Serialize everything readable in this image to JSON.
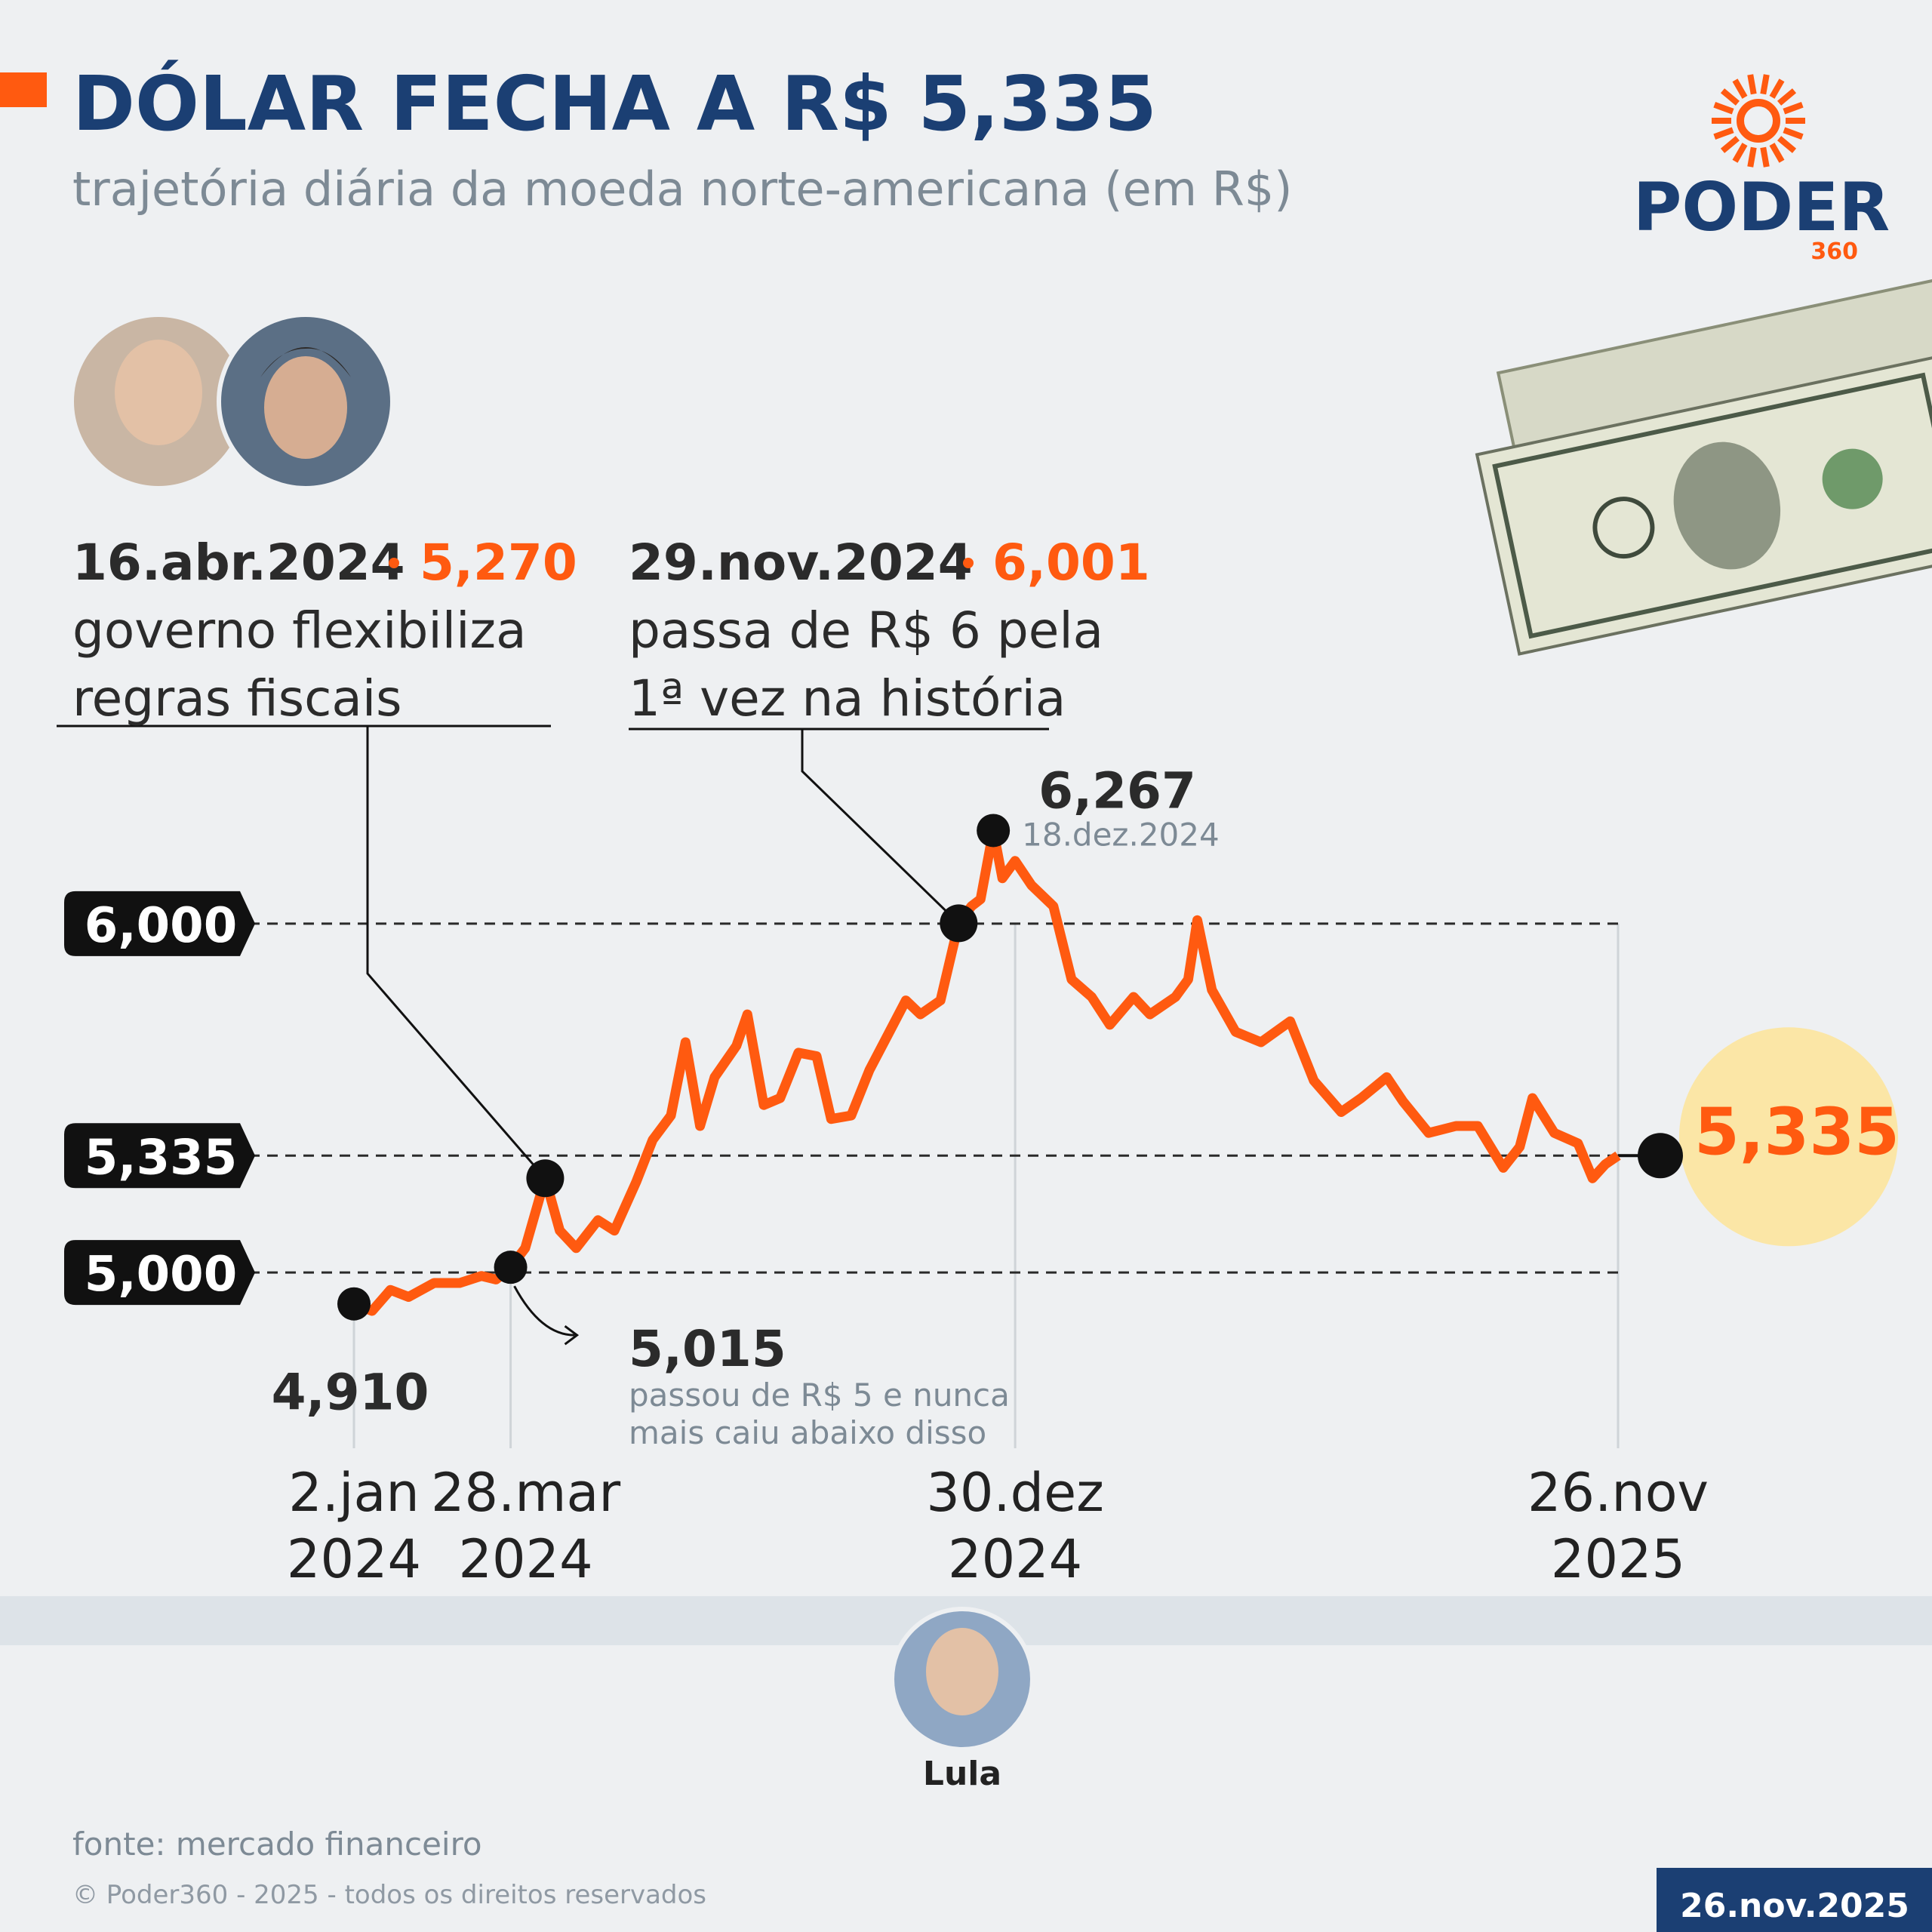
{
  "chart_data": {
    "type": "line",
    "title": "DÓLAR FECHA A R$ 5,335",
    "subtitle": "trajetória diária da moeda norte-americana (em R$)",
    "logo": "PODER",
    "logo_sub": "360",
    "x": [
      "2024-01-02",
      "2024-01-12",
      "2024-01-22",
      "2024-02-01",
      "2024-02-15",
      "2024-02-29",
      "2024-03-12",
      "2024-03-20",
      "2024-03-28",
      "2024-04-05",
      "2024-04-16",
      "2024-04-24",
      "2024-05-03",
      "2024-05-15",
      "2024-05-24",
      "2024-06-05",
      "2024-06-14",
      "2024-06-24",
      "2024-07-02",
      "2024-07-10",
      "2024-07-18",
      "2024-07-30",
      "2024-08-05",
      "2024-08-14",
      "2024-08-23",
      "2024-09-02",
      "2024-09-12",
      "2024-09-20",
      "2024-10-01",
      "2024-10-11",
      "2024-10-22",
      "2024-10-31",
      "2024-11-08",
      "2024-11-19",
      "2024-11-29",
      "2024-12-06",
      "2024-12-11",
      "2024-12-18",
      "2024-12-23",
      "2024-12-30",
      "2025-01-08",
      "2025-01-20",
      "2025-01-30",
      "2025-02-10",
      "2025-02-20",
      "2025-03-05",
      "2025-03-14",
      "2025-03-28",
      "2025-04-04",
      "2025-04-09",
      "2025-04-17",
      "2025-04-30",
      "2025-05-14",
      "2025-05-30",
      "2025-06-12",
      "2025-06-27",
      "2025-07-08",
      "2025-07-22",
      "2025-07-31",
      "2025-08-14",
      "2025-08-29",
      "2025-09-10",
      "2025-09-24",
      "2025-10-03",
      "2025-10-10",
      "2025-10-22",
      "2025-11-04",
      "2025-11-12",
      "2025-11-19",
      "2025-11-26"
    ],
    "series": [
      {
        "color": "#ff5a10",
        "values": [
          4.91,
          4.89,
          4.95,
          4.93,
          4.97,
          4.97,
          4.99,
          4.98,
          5.015,
          5.07,
          5.27,
          5.12,
          5.07,
          5.15,
          5.12,
          5.26,
          5.38,
          5.45,
          5.66,
          5.42,
          5.56,
          5.65,
          5.74,
          5.48,
          5.5,
          5.63,
          5.62,
          5.44,
          5.45,
          5.58,
          5.69,
          5.78,
          5.74,
          5.78,
          6.001,
          6.05,
          6.07,
          6.267,
          6.13,
          6.18,
          6.11,
          6.05,
          5.84,
          5.79,
          5.71,
          5.79,
          5.74,
          5.79,
          5.84,
          6.01,
          5.81,
          5.69,
          5.66,
          5.72,
          5.55,
          5.46,
          5.5,
          5.56,
          5.49,
          5.4,
          5.42,
          5.42,
          5.3,
          5.36,
          5.5,
          5.4,
          5.37,
          5.27,
          5.31,
          5.335
        ]
      }
    ],
    "xlim": [
      "2024-01-02",
      "2025-11-26"
    ],
    "xticks": [
      {
        "value": "2024-01-02",
        "label": [
          "2.jan",
          "2024"
        ]
      },
      {
        "value": "2024-03-28",
        "label": [
          "28.mar",
          "2024"
        ]
      },
      {
        "value": "2024-12-30",
        "label": [
          "30.dez",
          "2024"
        ]
      },
      {
        "value": "2025-11-26",
        "label": [
          "26.nov",
          "2025"
        ]
      }
    ],
    "ylim": [
      4.6,
      6.4
    ],
    "yticks": [
      {
        "value": 5,
        "label": "5,000"
      },
      {
        "value": 5.335,
        "label": "5,335"
      },
      {
        "value": 6,
        "label": "6,000"
      }
    ],
    "annotations": [
      {
        "x": "2024-04-16",
        "value": 5.27,
        "label": "5,270",
        "date": "16.abr.2024",
        "text": [
          "governo flexibiliza",
          "regras fiscais"
        ]
      },
      {
        "x": "2024-11-29",
        "value": 6.001,
        "label": "6,001",
        "date": "29.nov.2024",
        "text": [
          "passa de R$ 6 pela",
          "1ª vez na história"
        ]
      },
      {
        "x": "2024-12-18",
        "value": 6.267,
        "label": "6,267",
        "date": "18.dez.2024"
      },
      {
        "x": "2024-01-02",
        "value": 4.91,
        "label": "4,910"
      },
      {
        "x": "2024-03-28",
        "value": 5.015,
        "label": "5,015",
        "text": [
          "passou de R$ 5 e nunca",
          "mais caiu abaixo disso"
        ]
      }
    ],
    "end": {
      "x": "2025-11-26",
      "value": 5.335,
      "label": "5,335"
    },
    "timeline_label": "Lula",
    "source": "fonte: mercado financeiro",
    "copyright": "© Poder360 - 2025 - todos os direitos reservados",
    "date": "26.nov.2025"
  }
}
